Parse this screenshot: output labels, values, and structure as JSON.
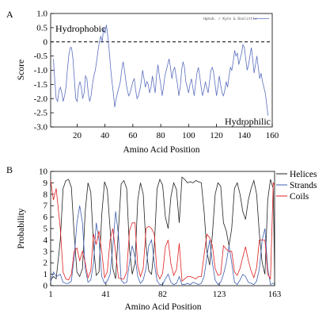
{
  "chart_data": [
    {
      "type": "line",
      "panel_label": "A",
      "ylabel": "Score",
      "xlabel": "Amino Acid Position",
      "xlim": [
        1,
        160
      ],
      "ylim": [
        -3.0,
        1.0
      ],
      "xticks": [
        20,
        40,
        60,
        80,
        100,
        120,
        140,
        160
      ],
      "yticks": [
        1.0,
        0.5,
        0,
        -0.5,
        -1.0,
        -1.5,
        -2.0,
        -2.5,
        -3.0
      ],
      "ytick_labels": [
        "1.0",
        "0.5",
        "0",
        "-0.5",
        "-1.0",
        "-1.5",
        "-2.0",
        "-2.5",
        "-3.0"
      ],
      "reference_line": 0,
      "annotations": {
        "top": "Hydrophobic",
        "bottom": "Hydrophilic"
      },
      "legend": "Hphob. / Kyte & Doolittle",
      "series": [
        {
          "name": "Hphob. / Kyte & Doolittle",
          "color": "#5b6fbf",
          "x": [
            3,
            4,
            5,
            6,
            7,
            8,
            9,
            10,
            11,
            12,
            13,
            14,
            15,
            16,
            17,
            18,
            19,
            20,
            21,
            22,
            23,
            24,
            25,
            26,
            27,
            28,
            29,
            30,
            31,
            32,
            33,
            34,
            35,
            36,
            37,
            38,
            39,
            40,
            41,
            42,
            43,
            44,
            45,
            46,
            47,
            48,
            49,
            50,
            51,
            52,
            53,
            54,
            55,
            56,
            57,
            58,
            59,
            60,
            61,
            62,
            63,
            64,
            65,
            66,
            67,
            68,
            69,
            70,
            71,
            72,
            73,
            74,
            75,
            76,
            77,
            78,
            79,
            80,
            81,
            82,
            83,
            84,
            85,
            86,
            87,
            88,
            89,
            90,
            91,
            92,
            93,
            94,
            95,
            96,
            97,
            98,
            99,
            100,
            101,
            102,
            103,
            104,
            105,
            106,
            107,
            108,
            109,
            110,
            111,
            112,
            113,
            114,
            115,
            116,
            117,
            118,
            119,
            120,
            121,
            122,
            123,
            124,
            125,
            126,
            127,
            128,
            129,
            130,
            131,
            132,
            133,
            134,
            135,
            136,
            137,
            138,
            139,
            140,
            141,
            142,
            143,
            144,
            145,
            146,
            147,
            148,
            149,
            150,
            151,
            152,
            153,
            154,
            155,
            156,
            157
          ],
          "values": [
            -0.6,
            -1.4,
            -2.0,
            -2.1,
            -1.7,
            -1.6,
            -1.8,
            -2.1,
            -1.9,
            -1.6,
            -1.0,
            -0.5,
            -0.2,
            -0.2,
            -0.6,
            -1.3,
            -2.0,
            -2.1,
            -1.6,
            -1.4,
            -1.6,
            -2.0,
            -1.8,
            -1.2,
            -1.3,
            -1.8,
            -2.1,
            -1.9,
            -1.5,
            -1.2,
            -1.0,
            -0.7,
            -0.3,
            0.0,
            0.2,
            0.0,
            0.5,
            0.3,
            0.6,
            0.2,
            -0.3,
            -0.9,
            -1.4,
            -1.8,
            -2.3,
            -2.0,
            -1.8,
            -1.6,
            -1.4,
            -1.0,
            -0.7,
            -1.0,
            -1.4,
            -1.7,
            -1.9,
            -1.8,
            -1.6,
            -1.4,
            -1.3,
            -1.7,
            -2.0,
            -1.9,
            -1.7,
            -1.4,
            -1.0,
            -1.3,
            -1.6,
            -1.4,
            -1.5,
            -1.8,
            -1.6,
            -1.2,
            -1.5,
            -1.8,
            -1.2,
            -0.8,
            -1.2,
            -1.5,
            -1.9,
            -1.6,
            -1.2,
            -1.0,
            -0.8,
            -0.6,
            -0.9,
            -1.3,
            -1.0,
            -0.9,
            -1.2,
            -1.5,
            -1.9,
            -1.6,
            -1.0,
            -0.7,
            -0.9,
            -1.4,
            -1.6,
            -1.8,
            -1.5,
            -1.3,
            -1.6,
            -1.9,
            -1.5,
            -1.1,
            -0.9,
            -1.2,
            -1.6,
            -1.9,
            -1.7,
            -1.4,
            -1.6,
            -1.8,
            -1.4,
            -1.0,
            -0.9,
            -1.1,
            -1.5,
            -1.9,
            -1.6,
            -1.2,
            -1.5,
            -1.8,
            -1.9,
            -1.7,
            -1.4,
            -1.6,
            -1.2,
            -0.9,
            -1.0,
            -0.7,
            -0.3,
            -0.5,
            -0.4,
            -0.8,
            -0.6,
            -0.4,
            -0.1,
            -0.2,
            -0.6,
            -1.0,
            -0.8,
            -0.5,
            -0.2,
            -0.6,
            -1.1,
            -0.8,
            -0.5,
            -0.9,
            -1.3,
            -1.1,
            -1.4,
            -1.6,
            -1.8,
            -2.2,
            -2.6
          ]
        }
      ]
    },
    {
      "type": "line",
      "panel_label": "B",
      "ylabel": "Probability",
      "xlabel": "Amino Acid Position",
      "xlim": [
        1,
        163
      ],
      "ylim": [
        0,
        10
      ],
      "xticks": [
        1,
        41,
        82,
        123,
        163
      ],
      "yticks": [
        0,
        1,
        2,
        3,
        4,
        5,
        6,
        7,
        8,
        9,
        10
      ],
      "legend_position": "right",
      "series": [
        {
          "name": "Helices",
          "color": "#222222",
          "x": [
            1,
            3,
            5,
            8,
            10,
            12,
            14,
            16,
            18,
            20,
            22,
            24,
            26,
            28,
            30,
            32,
            34,
            36,
            38,
            40,
            42,
            44,
            46,
            48,
            50,
            52,
            54,
            56,
            58,
            60,
            62,
            64,
            66,
            68,
            70,
            72,
            74,
            76,
            78,
            80,
            82,
            84,
            86,
            88,
            90,
            92,
            94,
            96,
            98,
            100,
            102,
            104,
            106,
            108,
            110,
            112,
            114,
            116,
            118,
            120,
            122,
            124,
            126,
            128,
            130,
            132,
            134,
            136,
            138,
            140,
            142,
            144,
            146,
            148,
            150,
            152,
            154,
            156,
            158,
            160,
            162,
            163
          ],
          "values": [
            0.5,
            0.8,
            0.6,
            4.0,
            8.5,
            9.2,
            9.3,
            8.6,
            4.5,
            1.2,
            0.8,
            1.5,
            6.5,
            9.0,
            8.2,
            3.5,
            0.9,
            1.2,
            6.2,
            9.1,
            8.4,
            5.0,
            1.5,
            0.6,
            4.8,
            8.9,
            9.2,
            8.5,
            3.2,
            1.0,
            2.0,
            7.5,
            9.0,
            8.0,
            3.5,
            1.3,
            1.0,
            3.5,
            8.5,
            9.3,
            8.8,
            6.0,
            5.0,
            7.8,
            9.0,
            8.4,
            5.5,
            9.5,
            9.3,
            9.0,
            9.1,
            9.0,
            9.2,
            9.1,
            9.0,
            6.5,
            3.0,
            1.8,
            4.5,
            8.0,
            9.0,
            8.7,
            5.5,
            4.8,
            3.5,
            5.0,
            8.5,
            9.0,
            8.0,
            6.5,
            5.8,
            7.5,
            8.5,
            9.2,
            8.0,
            4.5,
            2.0,
            1.0,
            7.5,
            9.3,
            8.5,
            1.0
          ]
        },
        {
          "name": "Strands",
          "color": "#3e5fb0",
          "x": [
            1,
            3,
            5,
            8,
            10,
            12,
            14,
            16,
            18,
            20,
            22,
            24,
            26,
            28,
            30,
            32,
            34,
            36,
            38,
            40,
            42,
            44,
            46,
            48,
            50,
            52,
            54,
            56,
            58,
            60,
            62,
            64,
            66,
            68,
            70,
            72,
            74,
            76,
            78,
            80,
            82,
            84,
            86,
            88,
            90,
            92,
            94,
            96,
            98,
            100,
            102,
            104,
            106,
            108,
            110,
            112,
            114,
            116,
            118,
            120,
            122,
            124,
            126,
            128,
            130,
            132,
            134,
            136,
            138,
            140,
            142,
            144,
            146,
            148,
            150,
            152,
            154,
            156,
            158,
            160,
            162,
            163
          ],
          "values": [
            0.3,
            1.2,
            0.8,
            1.0,
            0.3,
            0.2,
            0.2,
            0.4,
            2.5,
            5.5,
            7.0,
            5.5,
            1.5,
            0.3,
            0.5,
            2.0,
            5.5,
            4.0,
            0.8,
            0.2,
            0.4,
            1.0,
            3.5,
            6.5,
            4.5,
            0.5,
            0.2,
            0.3,
            2.0,
            3.5,
            2.5,
            0.8,
            0.2,
            0.5,
            1.5,
            3.5,
            4.0,
            2.0,
            0.4,
            0.1,
            0.1,
            0.6,
            1.0,
            0.3,
            0.1,
            0.2,
            0.8,
            0.1,
            0.1,
            0.2,
            0.1,
            0.3,
            0.2,
            0.1,
            0.2,
            0.8,
            2.5,
            4.0,
            2.0,
            0.5,
            0.1,
            0.3,
            1.0,
            2.0,
            3.5,
            2.0,
            0.3,
            0.1,
            0.5,
            1.0,
            0.8,
            0.3,
            0.2,
            0.1,
            0.4,
            1.5,
            4.0,
            5.0,
            1.5,
            0.1,
            0.2,
            0.2
          ]
        },
        {
          "name": "Coils",
          "color": "#e02020",
          "x": [
            1,
            3,
            5,
            8,
            10,
            12,
            14,
            16,
            18,
            20,
            22,
            24,
            26,
            28,
            30,
            32,
            34,
            36,
            38,
            40,
            42,
            44,
            46,
            48,
            50,
            52,
            54,
            56,
            58,
            60,
            62,
            64,
            66,
            68,
            70,
            72,
            74,
            76,
            78,
            80,
            82,
            84,
            86,
            88,
            90,
            92,
            94,
            96,
            98,
            100,
            102,
            104,
            106,
            108,
            110,
            112,
            114,
            116,
            118,
            120,
            122,
            124,
            126,
            128,
            130,
            132,
            134,
            136,
            138,
            140,
            142,
            144,
            146,
            148,
            150,
            152,
            154,
            156,
            158,
            160,
            162,
            163
          ],
          "values": [
            9.2,
            7.5,
            8.5,
            5.0,
            1.2,
            0.6,
            0.5,
            1.0,
            3.0,
            3.3,
            2.2,
            3.0,
            2.0,
            0.7,
            1.3,
            4.5,
            3.6,
            4.8,
            3.0,
            0.7,
            1.2,
            4.0,
            5.0,
            2.9,
            0.7,
            0.6,
            0.6,
            1.2,
            4.8,
            5.5,
            5.5,
            1.7,
            0.8,
            1.5,
            5.0,
            5.2,
            5.0,
            4.5,
            1.1,
            0.6,
            1.1,
            3.4,
            4.0,
            1.9,
            0.9,
            1.4,
            3.7,
            0.4,
            0.6,
            0.8,
            0.8,
            0.7,
            0.6,
            0.8,
            0.8,
            2.7,
            4.5,
            4.2,
            3.5,
            1.5,
            0.9,
            1.0,
            3.5,
            3.2,
            3.0,
            3.0,
            1.2,
            0.9,
            1.5,
            2.5,
            3.4,
            2.2,
            1.3,
            0.7,
            1.6,
            4.0,
            4.0,
            4.0,
            1.0,
            0.6,
            9.0,
            8.8
          ]
        }
      ]
    }
  ]
}
